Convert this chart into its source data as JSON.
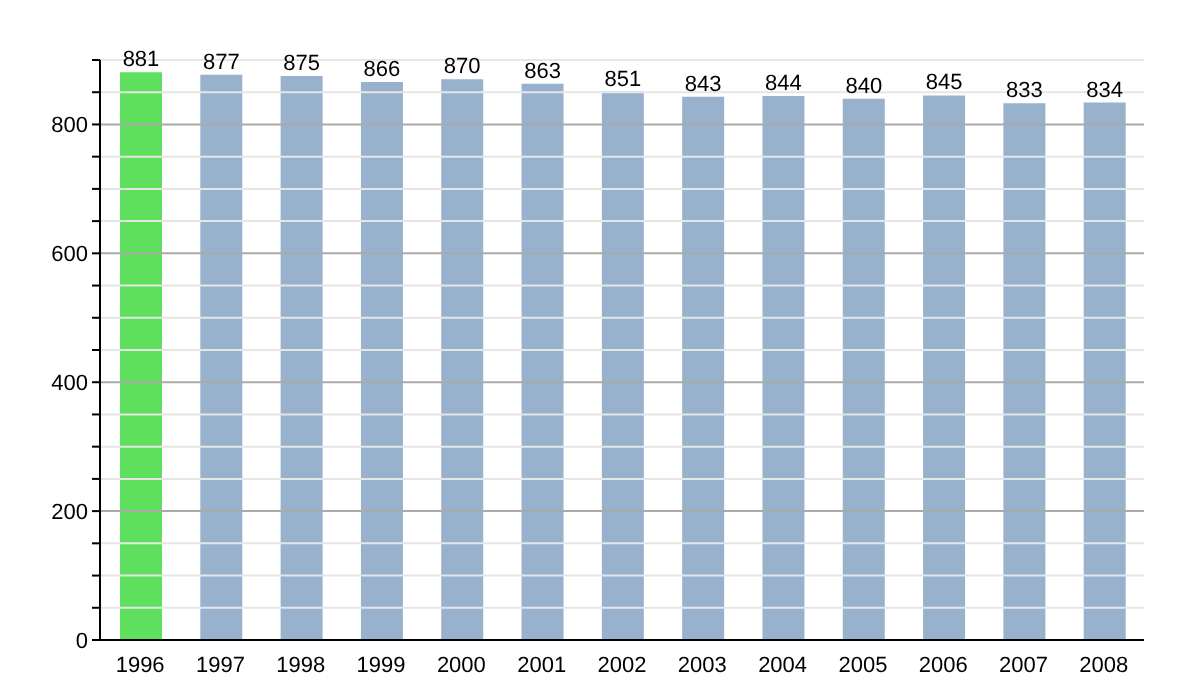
{
  "chart_data": {
    "type": "bar",
    "categories": [
      "1996",
      "1997",
      "1998",
      "1999",
      "2000",
      "2001",
      "2002",
      "2003",
      "2004",
      "2005",
      "2006",
      "2007",
      "2008"
    ],
    "values": [
      881,
      877,
      875,
      866,
      870,
      863,
      851,
      843,
      844,
      840,
      845,
      833,
      834
    ],
    "colors": [
      "#5ee05e",
      "#98b1cc",
      "#98b1cc",
      "#98b1cc",
      "#98b1cc",
      "#98b1cc",
      "#98b1cc",
      "#98b1cc",
      "#98b1cc",
      "#98b1cc",
      "#98b1cc",
      "#98b1cc",
      "#98b1cc"
    ],
    "ylim": [
      0,
      900
    ],
    "yticks": [
      0,
      {
        "value": 50,
        "label": null
      },
      {
        "value": 100,
        "label": null
      },
      {
        "value": 150,
        "label": null
      },
      200,
      {
        "value": 250,
        "label": null
      },
      {
        "value": 300,
        "label": null
      },
      {
        "value": 350,
        "label": null
      },
      400,
      {
        "value": 450,
        "label": null
      },
      {
        "value": 500,
        "label": null
      },
      {
        "value": 550,
        "label": null
      },
      600,
      {
        "value": 650,
        "label": null
      },
      {
        "value": 700,
        "label": null
      },
      {
        "value": 750,
        "label": null
      },
      800,
      {
        "value": 850,
        "label": null
      },
      {
        "value": 900,
        "label": null
      }
    ],
    "grid": "y",
    "data_labels": true
  }
}
